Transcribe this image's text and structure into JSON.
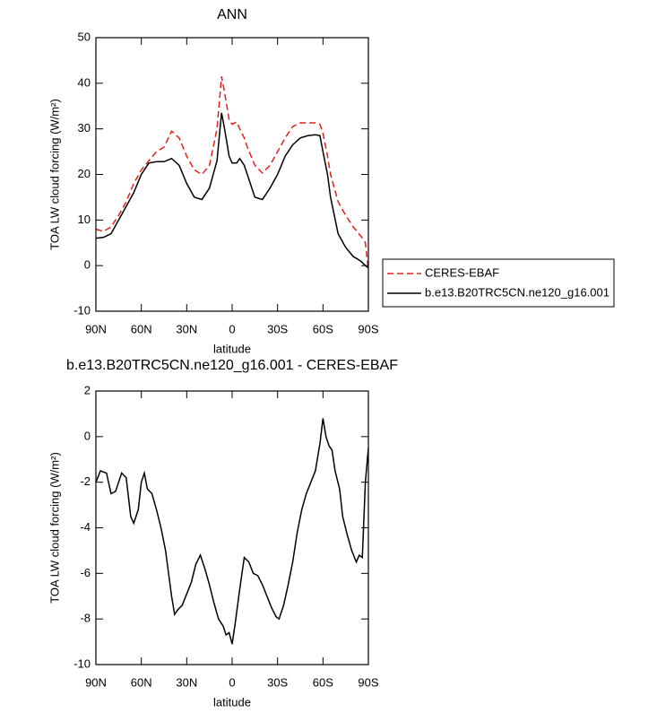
{
  "chart_data": [
    {
      "type": "line",
      "title": "ANN",
      "x_label": "latitude",
      "y_label": "TOA LW cloud forcing (W/m²)",
      "x": [
        90,
        85,
        80,
        75,
        70,
        65,
        60,
        55,
        50,
        45,
        40,
        35,
        30,
        25,
        20,
        15,
        10,
        7,
        5,
        2,
        0,
        -3,
        -5,
        -8,
        -10,
        -15,
        -20,
        -25,
        -30,
        -35,
        -40,
        -45,
        -50,
        -55,
        -58,
        -60,
        -63,
        -65,
        -70,
        -75,
        -80,
        -85,
        -88,
        -90
      ],
      "series": [
        {
          "name": "CERES-EBAF",
          "color": "#e0201b",
          "dash": true,
          "values": [
            8,
            7.5,
            8.5,
            11,
            14,
            18,
            21,
            23,
            25,
            26,
            29.5,
            28,
            24,
            21,
            20,
            22,
            30,
            41.5,
            38,
            32,
            31,
            31.5,
            30,
            28,
            26,
            22,
            20.3,
            22,
            25,
            28,
            30.5,
            31.3,
            31.3,
            31.3,
            31,
            29,
            24,
            20,
            14,
            11,
            8.5,
            6.5,
            5,
            -1
          ]
        },
        {
          "name": "b.e13.B20TRC5CN.ne120_g16.001",
          "color": "#000000",
          "dash": false,
          "values": [
            6,
            6.2,
            7,
            10,
            13,
            16,
            20,
            22.5,
            22.8,
            22.8,
            23.5,
            22,
            18,
            15,
            14.5,
            17,
            23,
            33.5,
            30,
            24,
            22.5,
            22.5,
            23.5,
            22,
            20,
            15,
            14.5,
            17,
            20,
            24,
            26.5,
            28,
            28.5,
            28.7,
            28.5,
            25,
            20,
            15,
            7,
            4,
            2,
            1,
            0,
            -0.5
          ]
        }
      ],
      "xlim": [
        90,
        -90
      ],
      "xticks": [
        {
          "value": 90,
          "label": "90N"
        },
        {
          "value": 60,
          "label": "60N"
        },
        {
          "value": 30,
          "label": "30N"
        },
        0,
        {
          "value": -30,
          "label": "30S"
        },
        {
          "value": -60,
          "label": "60S"
        },
        {
          "value": -90,
          "label": "90S"
        }
      ],
      "ylim": [
        -10,
        50
      ],
      "yticks": [
        -10,
        0,
        10,
        20,
        30,
        40,
        50
      ],
      "legend": "right"
    },
    {
      "type": "line",
      "title": "b.e13.B20TRC5CN.ne120_g16.001 - CERES-EBAF",
      "x_label": "latitude",
      "y_label": "TOA LW cloud forcing (W/m²)",
      "x": [
        90,
        87,
        83,
        80,
        77,
        73,
        70,
        67,
        65,
        62,
        60,
        58,
        56,
        53,
        50,
        47,
        44,
        42,
        40,
        38,
        36,
        33,
        30,
        27,
        24,
        21,
        18,
        15,
        12,
        9,
        6,
        4,
        2,
        0,
        -2,
        -5,
        -8,
        -11,
        -14,
        -17,
        -20,
        -23,
        -26,
        -29,
        -31,
        -34,
        -37,
        -40,
        -43,
        -46,
        -49,
        -52,
        -55,
        -58,
        -60,
        -62,
        -64,
        -66,
        -68,
        -71,
        -73,
        -76,
        -79,
        -82,
        -84,
        -86,
        -88,
        -90
      ],
      "series": [
        {
          "color": "#000000",
          "dash": false,
          "values": [
            -2,
            -1.5,
            -1.6,
            -2.5,
            -2.4,
            -1.6,
            -1.8,
            -3.5,
            -3.8,
            -3.2,
            -2.0,
            -1.6,
            -2.3,
            -2.5,
            -3.2,
            -4,
            -5,
            -6,
            -7,
            -7.8,
            -7.6,
            -7.4,
            -6.9,
            -6.4,
            -5.6,
            -5.2,
            -5.8,
            -6.5,
            -7.3,
            -8,
            -8.3,
            -8.7,
            -8.6,
            -9.1,
            -8.2,
            -6.7,
            -5.3,
            -5.5,
            -6,
            -6.1,
            -6.5,
            -7,
            -7.5,
            -7.9,
            -8,
            -7.4,
            -6.5,
            -5.5,
            -4.2,
            -3.2,
            -2.5,
            -2,
            -1.5,
            -0.3,
            0.8,
            0,
            -0.4,
            -0.6,
            -1.5,
            -2.3,
            -3.5,
            -4.3,
            -5,
            -5.5,
            -5.2,
            -5.3,
            -2,
            -0.5
          ]
        }
      ],
      "xlim": [
        90,
        -90
      ],
      "xticks": [
        {
          "value": 90,
          "label": "90N"
        },
        {
          "value": 60,
          "label": "60N"
        },
        {
          "value": 30,
          "label": "30N"
        },
        0,
        {
          "value": -30,
          "label": "30S"
        },
        {
          "value": -60,
          "label": "60S"
        },
        {
          "value": -90,
          "label": "90S"
        }
      ],
      "ylim": [
        -10,
        2
      ],
      "yticks": [
        -10,
        -8,
        -6,
        -4,
        -2,
        0,
        2
      ]
    }
  ]
}
